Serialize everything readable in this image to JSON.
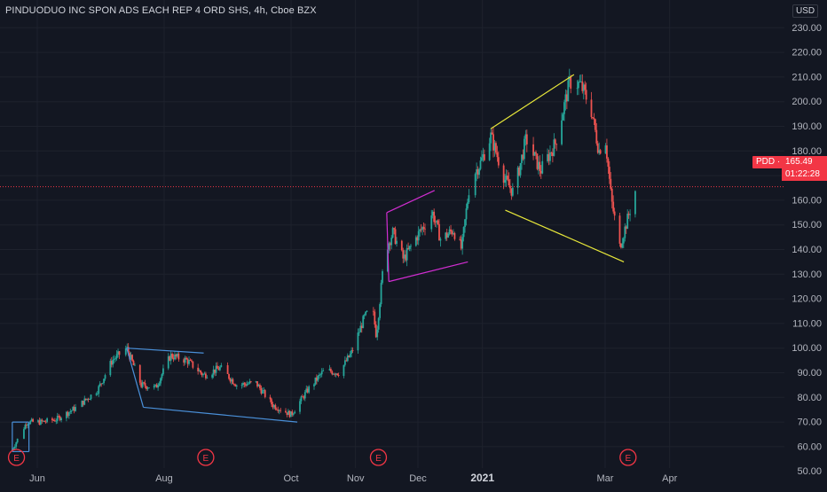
{
  "header": {
    "title": "PINDUODUO INC SPON ADS EACH REP 4 ORD SHS, 4h, Cboe BZX"
  },
  "currency_label": "USD",
  "last_price": {
    "symbol": "PDD",
    "separator": "·",
    "value": "165.49",
    "countdown": "01:22:28"
  },
  "colors": {
    "background": "#131722",
    "up_candle": "#26a69a",
    "down_candle": "#ef5350",
    "price_line": "#f23645",
    "trend_blue": "#4a90d9",
    "trend_magenta": "#d12dd1",
    "trend_yellow": "#e8e83a",
    "earnings_marker": "#f23645"
  },
  "earnings_marker_label": "E",
  "chart_data": {
    "type": "candlestick",
    "title": "PINDUODUO INC SPON ADS EACH REP 4 ORD SHS, 4h, Cboe BZX",
    "ylim": [
      45,
      230
    ],
    "y_ticks": [
      230,
      220,
      210,
      200,
      190,
      180,
      170,
      160,
      150,
      140,
      130,
      120,
      110,
      100,
      90,
      80,
      70,
      60,
      50
    ],
    "y_tick_labels": [
      "230.00",
      "220.00",
      "210.00",
      "200.00",
      "190.00",
      "180.00",
      "170.00",
      "160.00",
      "150.00",
      "140.00",
      "130.00",
      "120.00",
      "110.00",
      "100.00",
      "90.00",
      "80.00",
      "70.00",
      "60.00",
      "50.00"
    ],
    "x_range": [
      "2020-05-20",
      "2021-04-20"
    ],
    "x_ticks": [
      {
        "date": "2020-06-01",
        "label": "Jun"
      },
      {
        "date": "2020-08-01",
        "label": "Aug"
      },
      {
        "date": "2020-10-01",
        "label": "Oct"
      },
      {
        "date": "2020-11-01",
        "label": "Nov"
      },
      {
        "date": "2020-12-01",
        "label": "Dec"
      },
      {
        "date": "2021-01-01",
        "label": "2021"
      },
      {
        "date": "2021-03-01",
        "label": "Mar"
      },
      {
        "date": "2021-04-01",
        "label": "Apr"
      }
    ],
    "grid": true,
    "price_anchors": [
      [
        "2020-05-20",
        59
      ],
      [
        "2020-05-27",
        70
      ],
      [
        "2020-06-03",
        70
      ],
      [
        "2020-06-10",
        71
      ],
      [
        "2020-06-20",
        76
      ],
      [
        "2020-06-30",
        83
      ],
      [
        "2020-07-07",
        95
      ],
      [
        "2020-07-14",
        100
      ],
      [
        "2020-07-21",
        85
      ],
      [
        "2020-07-28",
        84
      ],
      [
        "2020-08-04",
        97
      ],
      [
        "2020-08-12",
        95
      ],
      [
        "2020-08-20",
        89
      ],
      [
        "2020-08-28",
        92
      ],
      [
        "2020-09-05",
        85
      ],
      [
        "2020-09-14",
        86
      ],
      [
        "2020-09-22",
        77
      ],
      [
        "2020-10-01",
        73
      ],
      [
        "2020-10-09",
        83
      ],
      [
        "2020-10-17",
        91
      ],
      [
        "2020-10-24",
        90
      ],
      [
        "2020-10-30",
        98
      ],
      [
        "2020-11-05",
        112
      ],
      [
        "2020-11-09",
        117
      ],
      [
        "2020-11-11",
        105
      ],
      [
        "2020-11-15",
        139
      ],
      [
        "2020-11-19",
        147
      ],
      [
        "2020-11-24",
        136
      ],
      [
        "2020-12-01",
        146
      ],
      [
        "2020-12-08",
        155
      ],
      [
        "2020-12-12",
        144
      ],
      [
        "2020-12-18",
        148
      ],
      [
        "2020-12-22",
        140
      ],
      [
        "2020-12-26",
        168
      ],
      [
        "2020-12-31",
        175
      ],
      [
        "2021-01-05",
        186
      ],
      [
        "2021-01-12",
        168
      ],
      [
        "2021-01-16",
        163
      ],
      [
        "2021-01-22",
        185
      ],
      [
        "2021-01-29",
        172
      ],
      [
        "2021-02-05",
        183
      ],
      [
        "2021-02-12",
        208
      ],
      [
        "2021-02-17",
        207
      ],
      [
        "2021-02-22",
        198
      ],
      [
        "2021-02-26",
        180
      ],
      [
        "2021-03-01",
        186
      ],
      [
        "2021-03-04",
        160
      ],
      [
        "2021-03-08",
        141
      ],
      [
        "2021-03-12",
        153
      ],
      [
        "2021-03-16",
        165.49
      ]
    ],
    "trendlines": [
      {
        "name": "blue-box-1-top",
        "color": "blue",
        "from": [
          "2020-05-20",
          70
        ],
        "to": [
          "2020-05-28",
          70
        ]
      },
      {
        "name": "blue-box-1-left",
        "color": "blue",
        "from": [
          "2020-05-20",
          70
        ],
        "to": [
          "2020-05-20",
          58
        ]
      },
      {
        "name": "blue-box-1-bottom",
        "color": "blue",
        "from": [
          "2020-05-20",
          58
        ],
        "to": [
          "2020-05-28",
          58
        ]
      },
      {
        "name": "blue-box-1-right",
        "color": "blue",
        "from": [
          "2020-05-28",
          70
        ],
        "to": [
          "2020-05-28",
          58
        ]
      },
      {
        "name": "blue-channel-top",
        "color": "blue",
        "from": [
          "2020-07-14",
          100
        ],
        "to": [
          "2020-08-20",
          98
        ]
      },
      {
        "name": "blue-channel-left",
        "color": "blue",
        "from": [
          "2020-07-14",
          100
        ],
        "to": [
          "2020-07-22",
          76
        ]
      },
      {
        "name": "blue-channel-bottom",
        "color": "blue",
        "from": [
          "2020-07-22",
          76
        ],
        "to": [
          "2020-10-04",
          70
        ]
      },
      {
        "name": "magenta-top",
        "color": "magenta",
        "from": [
          "2020-11-16",
          155
        ],
        "to": [
          "2020-12-09",
          164
        ]
      },
      {
        "name": "magenta-left",
        "color": "magenta",
        "from": [
          "2020-11-16",
          155
        ],
        "to": [
          "2020-11-17",
          127
        ]
      },
      {
        "name": "magenta-bottom",
        "color": "magenta",
        "from": [
          "2020-11-17",
          127
        ],
        "to": [
          "2020-12-25",
          135
        ]
      },
      {
        "name": "yellow-top",
        "color": "yellow",
        "from": [
          "2021-01-05",
          189
        ],
        "to": [
          "2021-02-14",
          211
        ]
      },
      {
        "name": "yellow-bottom",
        "color": "yellow",
        "from": [
          "2021-01-12",
          156
        ],
        "to": [
          "2021-03-10",
          135
        ]
      }
    ],
    "earnings_dates": [
      "2020-05-22",
      "2020-08-21",
      "2020-11-12",
      "2021-03-12"
    ],
    "last_price_line": 165.49
  }
}
